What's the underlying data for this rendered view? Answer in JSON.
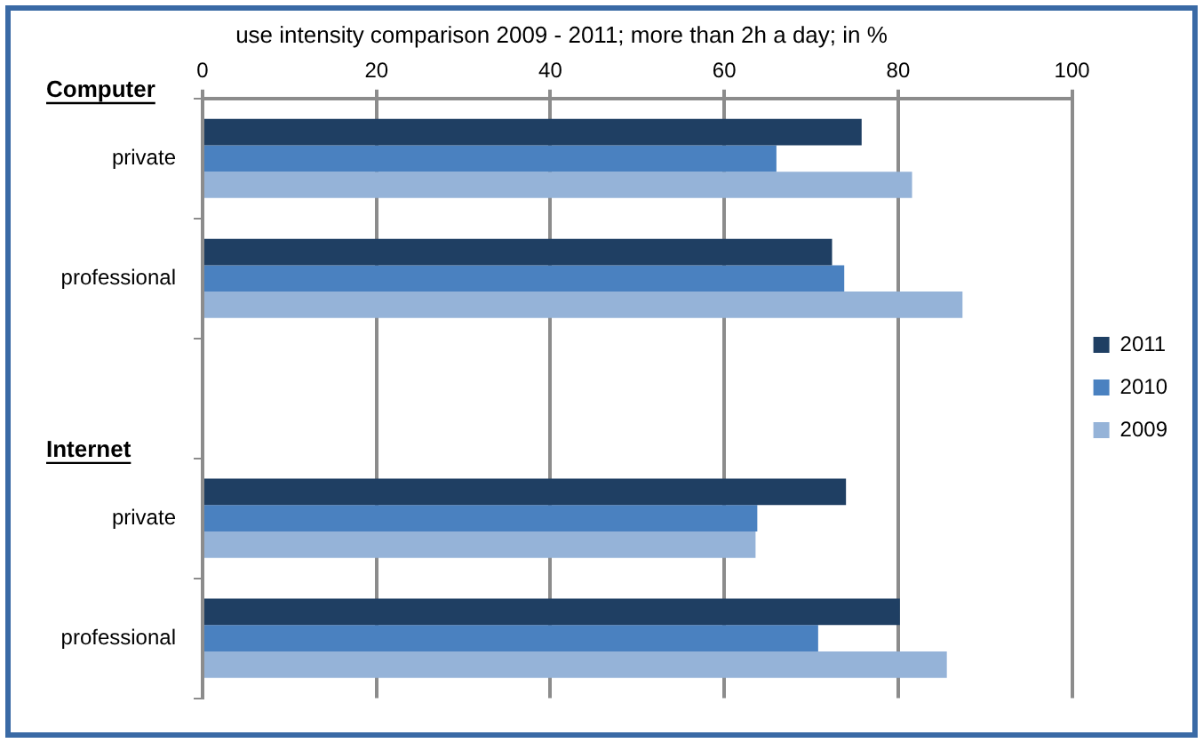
{
  "chart_data": {
    "type": "bar",
    "orientation": "horizontal",
    "title": "use intensity comparison 2009 - 2011;  more than 2h a day; in %",
    "categories": [
      "private",
      "professional",
      null,
      "private",
      "professional"
    ],
    "annotations": [
      "Computer",
      "Internet"
    ],
    "series": [
      {
        "name": "2011",
        "color": "#1f3f63",
        "values": [
          75.8,
          72.4,
          null,
          74.0,
          80.2
        ]
      },
      {
        "name": "2010",
        "color": "#4a81c0",
        "values": [
          66.0,
          73.8,
          null,
          63.8,
          70.8
        ]
      },
      {
        "name": "2009",
        "color": "#95b3d8",
        "values": [
          81.6,
          87.4,
          null,
          63.6,
          85.6
        ]
      }
    ],
    "xlim": [
      0,
      100
    ],
    "xticks": [
      0,
      20,
      40,
      60,
      80,
      100
    ],
    "grid": "x",
    "legend": "right"
  }
}
